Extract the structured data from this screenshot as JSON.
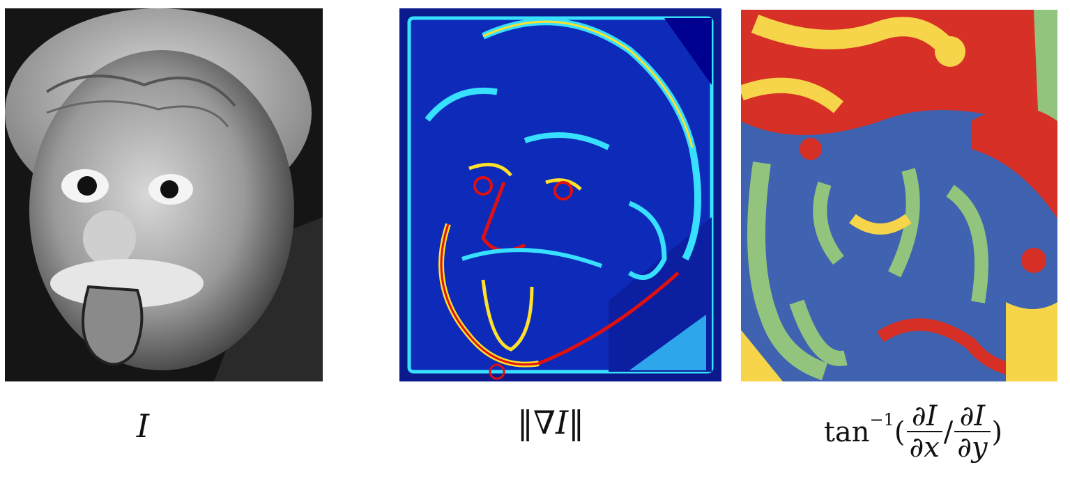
{
  "panels": {
    "photo": {
      "caption": "I"
    },
    "gradient_magnitude": {
      "caption_symbol": "∇",
      "caption_var": "I",
      "norm_bars": "‖"
    },
    "gradient_direction": {
      "func": "tan",
      "exponent": "−1",
      "num1": "∂I",
      "den1": "∂x",
      "num2": "∂I",
      "den2": "∂y",
      "open_paren": "(",
      "slash": "/",
      "close_paren": ")"
    }
  },
  "colors": {
    "jet_low": "#00008f",
    "jet_mid_blue": "#1e6cff",
    "jet_cyan": "#38e0ff",
    "jet_yellow": "#ffe02a",
    "jet_red": "#e01010",
    "dir_blue": "#3f63b0",
    "dir_green": "#93c47d",
    "dir_yellow": "#f6d54a",
    "dir_red": "#d73027"
  }
}
